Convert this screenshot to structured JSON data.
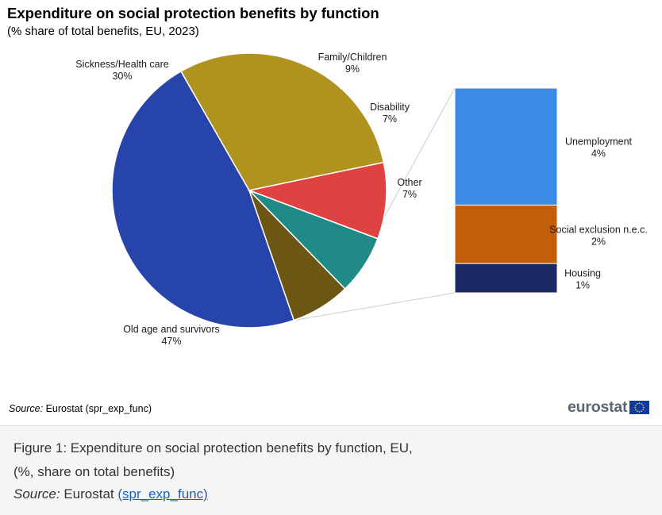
{
  "chart_data": {
    "type": "pie",
    "title": "Expenditure on social protection benefits by function",
    "subtitle": "(% share of total benefits, EU, 2023)",
    "unit": "%",
    "slices": [
      {
        "label": "Old age and survivors",
        "value": 47,
        "display": "47%",
        "color": "#2744aa"
      },
      {
        "label": "Sickness/Health care",
        "value": 30,
        "display": "30%",
        "color": "#b0921e"
      },
      {
        "label": "Family/Children",
        "value": 9,
        "display": "9%",
        "color": "#e04141"
      },
      {
        "label": "Disability",
        "value": 7,
        "display": "7%",
        "color": "#208a86"
      },
      {
        "label": "Other",
        "value": 7,
        "display": "7%",
        "color": "#6b5613"
      }
    ],
    "breakdown_of": "Other",
    "breakdown": [
      {
        "label": "Unemployment",
        "value": 4,
        "display": "4%",
        "color": "#3a8be6"
      },
      {
        "label": "Social exclusion n.e.c.",
        "value": 2,
        "display": "2%",
        "color": "#c25e07"
      },
      {
        "label": "Housing",
        "value": 1,
        "display": "1%",
        "color": "#1a2864"
      }
    ]
  },
  "source": {
    "label": "Source:",
    "text": "Eurostat (spr_exp_func)"
  },
  "logo": {
    "text": "eurostat"
  },
  "caption": {
    "line1": "Figure 1: Expenditure on social protection benefits by function, EU,",
    "line2": "(%, share on total benefits)",
    "source_label": "Source:",
    "source_text": "Eurostat",
    "link_text": "(spr_exp_func)"
  }
}
